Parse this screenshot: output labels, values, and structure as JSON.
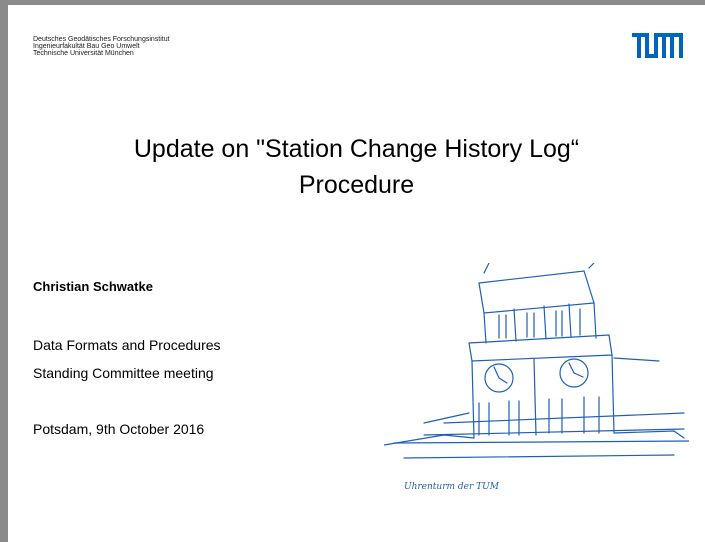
{
  "header": {
    "lines": [
      "Deutsches Geodätisches Forschungsinstitut",
      "Ingenieurfakultät Bau Geo Umwelt",
      "Technische Universität München"
    ]
  },
  "title": {
    "lines": [
      "Update on \"Station Change History Log“",
      "Procedure"
    ]
  },
  "author": "Christian Schwatke",
  "committee": {
    "lines": [
      "Data Formats and Procedures",
      "Standing Committee meeting"
    ]
  },
  "place_date": "Potsdam, 9th October 2016",
  "sketch_caption": "Uhrenturm der TUM"
}
